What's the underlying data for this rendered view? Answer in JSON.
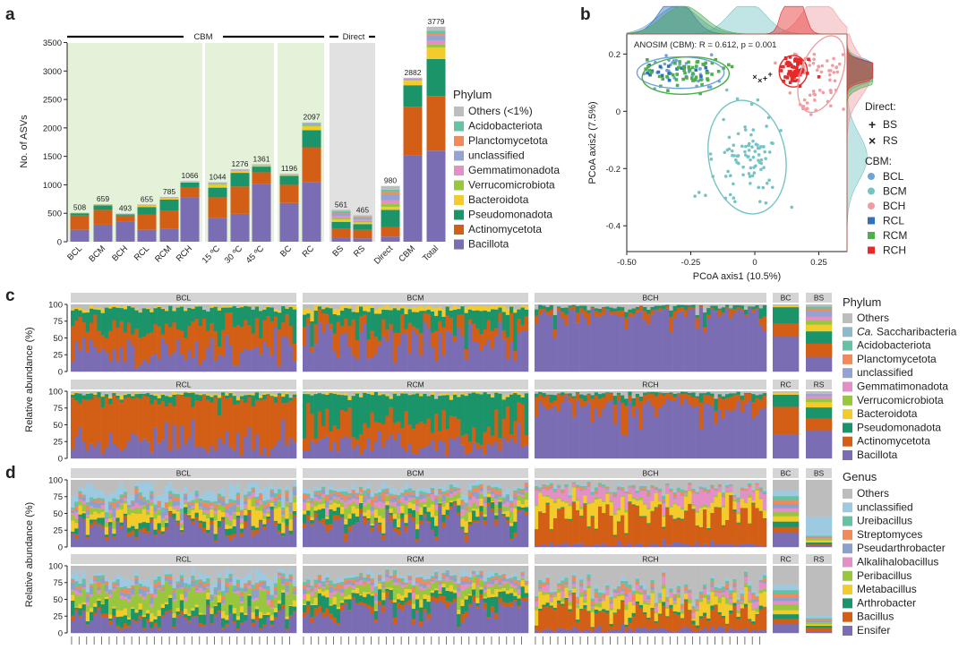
{
  "panel_letters": [
    "a",
    "b",
    "c",
    "d"
  ],
  "colors": {
    "Bacillota": "#7b6db3",
    "Actinomycetota": "#d35f17",
    "Pseudomonadota": "#1b9469",
    "Bacteroidota": "#f3cc2b",
    "Verrucomicrobiota": "#98c63c",
    "Gemmatimonadota": "#e48fc5",
    "unclassified": "#94a3d1",
    "Planctomycetota": "#f08a5d",
    "Acidobacteriota": "#66c2a5",
    "Ca. Saccharibacteria": "#8fb8cd",
    "Others": "#bdbdbd",
    "cbm_shade": "#e3f2d9",
    "direct_shade": "#e1e1e1",
    "BCL": "#6fa4d6",
    "BCM": "#76c3c6",
    "BCH": "#ef9da2",
    "RCL": "#2f72b8",
    "RCM": "#4fae4f",
    "RCH": "#e52a2a"
  },
  "chart_data": [
    {
      "id": "a",
      "type": "bar",
      "ylabel": "No. of ASVs",
      "yticks": [
        0,
        500,
        1000,
        1500,
        2000,
        2500,
        3000,
        3500
      ],
      "ylim": [
        0,
        3650
      ],
      "group_labels": [
        "CBM",
        "Direct"
      ],
      "categories": [
        "BCL",
        "BCM",
        "BCH",
        "RCL",
        "RCM",
        "RCH",
        "15 ºC",
        "30 ºC",
        "45 ºC",
        "BC",
        "RC",
        "BS",
        "RS",
        "Direct",
        "CBM",
        "Total"
      ],
      "totals": [
        508,
        659,
        493,
        655,
        785,
        1066,
        1044,
        1276,
        1361,
        1196,
        2097,
        561,
        465,
        980,
        2882,
        3779
      ],
      "legend_title": "Phylum",
      "legend": [
        "Others (<1%)",
        "Acidobacteriota",
        "Planctomycetota",
        "unclassified",
        "Gemmatimonadota",
        "Verrucomicrobiota",
        "Bacteroidota",
        "Pseudomonadota",
        "Actinomycetota",
        "Bacillota"
      ],
      "series": [
        {
          "name": "Bacillota",
          "values": [
            210,
            300,
            360,
            210,
            230,
            780,
            420,
            490,
            1020,
            680,
            1050,
            70,
            60,
            90,
            1520,
            1600
          ]
        },
        {
          "name": "Actinomycetota",
          "values": [
            250,
            260,
            100,
            270,
            320,
            180,
            360,
            480,
            200,
            320,
            610,
            160,
            150,
            170,
            850,
            960
          ]
        },
        {
          "name": "Pseudomonadota",
          "values": [
            40,
            80,
            20,
            130,
            190,
            80,
            170,
            240,
            100,
            160,
            300,
            120,
            100,
            300,
            380,
            650
          ]
        },
        {
          "name": "Bacteroidota",
          "values": [
            3,
            10,
            5,
            20,
            20,
            15,
            50,
            30,
            20,
            20,
            70,
            40,
            30,
            50,
            80,
            200
          ]
        },
        {
          "name": "Verrucomicrobiota",
          "values": [
            0,
            3,
            0,
            5,
            5,
            2,
            8,
            6,
            5,
            4,
            15,
            30,
            25,
            60,
            15,
            60
          ]
        },
        {
          "name": "Gemmatimonadota",
          "values": [
            0,
            2,
            2,
            5,
            5,
            3,
            10,
            7,
            5,
            4,
            12,
            30,
            25,
            55,
            10,
            70
          ]
        },
        {
          "name": "unclassified",
          "values": [
            5,
            4,
            6,
            5,
            8,
            4,
            15,
            10,
            6,
            4,
            20,
            45,
            30,
            110,
            12,
            80
          ]
        },
        {
          "name": "Planctomycetota",
          "values": [
            0,
            0,
            0,
            5,
            2,
            0,
            3,
            3,
            2,
            1,
            5,
            25,
            15,
            40,
            5,
            45
          ]
        },
        {
          "name": "Acidobacteriota",
          "values": [
            0,
            0,
            0,
            0,
            0,
            0,
            3,
            3,
            1,
            1,
            5,
            20,
            10,
            40,
            5,
            45
          ]
        },
        {
          "name": "Others (<1%)",
          "values": [
            0,
            0,
            0,
            5,
            5,
            2,
            5,
            7,
            2,
            2,
            10,
            21,
            20,
            65,
            5,
            69
          ]
        }
      ]
    },
    {
      "id": "b",
      "type": "scatter",
      "xlabel": "PCoA axis1 (10.5%)",
      "ylabel": "PCoA axis2 (7.5%)",
      "xlim": [
        -0.5,
        0.36
      ],
      "ylim": [
        -0.49,
        0.27
      ],
      "xticks": [
        "-0.50",
        "-0.25",
        "0",
        "0.25"
      ],
      "yticks": [
        "0.2",
        "0",
        "-0.2",
        "-0.4"
      ],
      "annotation": "ANOSIM (CBM): R = 0.612, p = 0.001",
      "legend_direct_title": "Direct:",
      "legend_direct": [
        {
          "symbol": "+",
          "label": "BS"
        },
        {
          "symbol": "×",
          "label": "RS"
        }
      ],
      "legend_cbm_title": "CBM:",
      "legend_cbm": [
        "BCL",
        "BCM",
        "BCH",
        "RCL",
        "RCM",
        "RCH"
      ],
      "series": [
        {
          "name": "BCL",
          "center": [
            -0.3,
            0.14
          ],
          "spread": [
            0.08,
            0.028
          ],
          "n": 40
        },
        {
          "name": "BCM",
          "center": [
            -0.03,
            -0.16
          ],
          "spread": [
            0.07,
            0.08
          ],
          "n": 90
        },
        {
          "name": "BCH",
          "center": [
            0.25,
            0.12
          ],
          "spread": [
            0.06,
            0.07
          ],
          "n": 60
        },
        {
          "name": "RCL",
          "center": [
            -0.31,
            0.145
          ],
          "spread": [
            0.06,
            0.02
          ],
          "n": 20
        },
        {
          "name": "RCM",
          "center": [
            -0.28,
            0.13
          ],
          "spread": [
            0.08,
            0.03
          ],
          "n": 50
        },
        {
          "name": "RCH",
          "center": [
            0.15,
            0.14
          ],
          "spread": [
            0.025,
            0.022
          ],
          "n": 70
        }
      ],
      "direct_points": [
        {
          "name": "BS",
          "x": 0.06,
          "y": 0.13
        },
        {
          "name": "BS",
          "x": 0.04,
          "y": 0.115
        },
        {
          "name": "RS",
          "x": 0.0,
          "y": 0.12
        },
        {
          "name": "RS",
          "x": 0.02,
          "y": 0.108
        }
      ],
      "ellipses": [
        {
          "name": "BCL",
          "cx": -0.29,
          "cy": 0.135,
          "rx": 0.17,
          "ry": 0.055,
          "angle": 0
        },
        {
          "name": "RCM",
          "cx": -0.27,
          "cy": 0.125,
          "rx": 0.17,
          "ry": 0.065,
          "angle": -3
        },
        {
          "name": "BCM",
          "cx": -0.03,
          "cy": -0.16,
          "rx": 0.15,
          "ry": 0.2,
          "angle": -10
        },
        {
          "name": "RCH",
          "cx": 0.15,
          "cy": 0.14,
          "rx": 0.055,
          "ry": 0.055,
          "angle": 0
        },
        {
          "name": "BCH",
          "cx": 0.26,
          "cy": 0.13,
          "rx": 0.08,
          "ry": 0.14,
          "angle": 20
        }
      ]
    },
    {
      "id": "c",
      "type": "bar",
      "ylabel": "Relative abundance (%)",
      "yticks": [
        0,
        25,
        50,
        75,
        100
      ],
      "ylim": [
        0,
        100
      ],
      "legend_title": "Phylum",
      "legend": [
        "Others",
        "Ca. Saccharibacteria",
        "Acidobacteriota",
        "Planctomycetota",
        "unclassified",
        "Gemmatimonadota",
        "Verrucomicrobiota",
        "Bacteroidota",
        "Pseudomonadota",
        "Actinomycetota",
        "Bacillota"
      ],
      "rows": [
        {
          "strips": [
            "BCL",
            "BCM",
            "BCH",
            "BC",
            "BS"
          ],
          "profiles": {
            "BCL": {
              "Bacillota": 32,
              "Actinomycetota": 38,
              "Pseudomonadota": 24,
              "Bacteroidota": 2,
              "Others": 4
            },
            "BCM": {
              "Bacillota": 48,
              "Actinomycetota": 22,
              "Pseudomonadota": 22,
              "Bacteroidota": 5,
              "Others": 3
            },
            "BCH": {
              "Bacillota": 88,
              "Actinomycetota": 5,
              "Pseudomonadota": 4,
              "Others": 3
            },
            "BC": {
              "Bacillota": 52,
              "Actinomycetota": 20,
              "Pseudomonadota": 24,
              "Bacteroidota": 2,
              "Others": 2
            },
            "BS": {
              "Bacillota": 22,
              "Actinomycetota": 20,
              "Pseudomonadota": 18,
              "Bacteroidota": 10,
              "Verrucomicrobiota": 6,
              "Gemmatimonadota": 6,
              "unclassified": 8,
              "Planctomycetota": 4,
              "Acidobacteriota": 3,
              "Others": 3
            }
          }
        },
        {
          "strips": [
            "RCL",
            "RCM",
            "RCH",
            "RC",
            "RS"
          ],
          "profiles": {
            "RCL": {
              "Bacillota": 25,
              "Actinomycetota": 62,
              "Pseudomonadota": 8,
              "Bacteroidota": 2,
              "Others": 3
            },
            "RCM": {
              "Bacillota": 22,
              "Actinomycetota": 28,
              "Pseudomonadota": 45,
              "Bacteroidota": 2,
              "Others": 3
            },
            "RCH": {
              "Bacillota": 78,
              "Actinomycetota": 15,
              "Pseudomonadota": 4,
              "Others": 3
            },
            "RC": {
              "Bacillota": 35,
              "Actinomycetota": 42,
              "Pseudomonadota": 18,
              "Bacteroidota": 3,
              "Others": 2
            },
            "RS": {
              "Bacillota": 42,
              "Actinomycetota": 18,
              "Pseudomonadota": 16,
              "Bacteroidota": 8,
              "Verrucomicrobiota": 5,
              "Gemmatimonadota": 4,
              "unclassified": 3,
              "Others": 4
            }
          }
        }
      ]
    },
    {
      "id": "d",
      "type": "bar",
      "ylabel": "Relative abundance (%)",
      "yticks": [
        0,
        25,
        50,
        75,
        100
      ],
      "ylim": [
        0,
        100
      ],
      "legend_title": "Genus",
      "legend": [
        "Others",
        "unclassified",
        "Ureibacillus",
        "Streptomyces",
        "Pseudarthrobacter",
        "Alkalihalobacillus",
        "Peribacillus",
        "Metabacillus",
        "Arthrobacter",
        "Bacillus",
        "Ensifer"
      ],
      "rows": [
        {
          "strips": [
            "BCL",
            "BCM",
            "BCH",
            "BC",
            "BS"
          ],
          "profiles": {
            "BCL": {
              "Ensifer": 30,
              "Bacillus": 4,
              "Arthrobacter": 6,
              "Metabacillus": 12,
              "Peribacillus": 6,
              "Alkalihalobacillus": 3,
              "Pseudarthrobacter": 6,
              "Streptomyces": 4,
              "Ureibacillus": 3,
              "unclassified": 12,
              "Others": 14
            },
            "BCM": {
              "Ensifer": 40,
              "Bacillus": 5,
              "Arthrobacter": 8,
              "Metabacillus": 8,
              "Peribacillus": 8,
              "Alkalihalobacillus": 5,
              "Pseudarthrobacter": 4,
              "Streptomyces": 4,
              "Ureibacillus": 3,
              "unclassified": 5,
              "Others": 10
            },
            "BCH": {
              "Ensifer": 4,
              "Bacillus": 45,
              "Arthrobacter": 1,
              "Metabacillus": 18,
              "Peribacillus": 2,
              "Alkalihalobacillus": 14,
              "Pseudarthrobacter": 1,
              "Streptomyces": 2,
              "Ureibacillus": 2,
              "unclassified": 2,
              "Others": 9
            },
            "BC": {
              "Ensifer": 22,
              "Bacillus": 8,
              "Arthrobacter": 8,
              "Metabacillus": 8,
              "Peribacillus": 6,
              "Alkalihalobacillus": 6,
              "Pseudarthrobacter": 6,
              "Streptomyces": 6,
              "Ureibacillus": 6,
              "unclassified": 8,
              "Others": 16
            },
            "BS": {
              "Ensifer": 2,
              "Bacillus": 2,
              "Arthrobacter": 3,
              "Metabacillus": 3,
              "Peribacillus": 2,
              "Alkalihalobacillus": 1,
              "Pseudarthrobacter": 1,
              "Streptomyces": 1,
              "Ureibacillus": 2,
              "unclassified": 28,
              "Others": 55
            }
          }
        },
        {
          "strips": [
            "RCL",
            "RCM",
            "RCH",
            "RC",
            "RS"
          ],
          "profiles": {
            "RCL": {
              "Ensifer": 18,
              "Bacillus": 3,
              "Arthrobacter": 10,
              "Metabacillus": 6,
              "Peribacillus": 22,
              "Alkalihalobacillus": 3,
              "Pseudarthrobacter": 6,
              "Streptomyces": 4,
              "Ureibacillus": 4,
              "unclassified": 10,
              "Others": 14
            },
            "RCM": {
              "Ensifer": 35,
              "Bacillus": 6,
              "Arthrobacter": 12,
              "Metabacillus": 6,
              "Peribacillus": 10,
              "Alkalihalobacillus": 4,
              "Pseudarthrobacter": 4,
              "Streptomyces": 4,
              "Ureibacillus": 3,
              "unclassified": 4,
              "Others": 12
            },
            "RCH": {
              "Ensifer": 5,
              "Bacillus": 25,
              "Arthrobacter": 3,
              "Metabacillus": 15,
              "Peribacillus": 4,
              "Alkalihalobacillus": 6,
              "Pseudarthrobacter": 2,
              "Streptomyces": 4,
              "Ureibacillus": 3,
              "unclassified": 3,
              "Others": 30
            },
            "RC": {
              "Ensifer": 14,
              "Bacillus": 7,
              "Arthrobacter": 7,
              "Metabacillus": 6,
              "Peribacillus": 9,
              "Alkalihalobacillus": 5,
              "Pseudarthrobacter": 5,
              "Streptomyces": 5,
              "Ureibacillus": 6,
              "unclassified": 8,
              "Others": 28
            },
            "RS": {
              "Ensifer": 3,
              "Bacillus": 5,
              "Arthrobacter": 3,
              "Metabacillus": 2,
              "Peribacillus": 2,
              "Alkalihalobacillus": 1,
              "Pseudarthrobacter": 2,
              "Streptomyces": 2,
              "Ureibacillus": 2,
              "unclassified": 4,
              "Others": 74
            }
          }
        }
      ]
    }
  ]
}
